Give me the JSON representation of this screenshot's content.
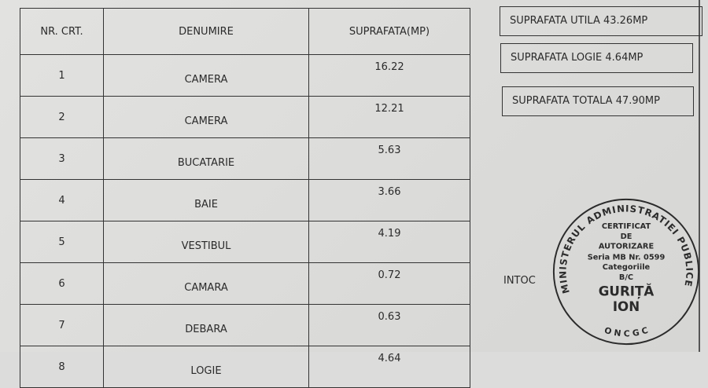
{
  "table": {
    "headers": [
      "NR. CRT.",
      "DENUMIRE",
      "SUPRAFATA(MP)"
    ],
    "rows": [
      {
        "nr": "1",
        "name": "CAMERA",
        "area": "16.22"
      },
      {
        "nr": "2",
        "name": "CAMERA",
        "area": "12.21"
      },
      {
        "nr": "3",
        "name": "BUCATARIE",
        "area": "5.63"
      },
      {
        "nr": "4",
        "name": "BAIE",
        "area": "3.66"
      },
      {
        "nr": "5",
        "name": "VESTIBUL",
        "area": "4.19"
      },
      {
        "nr": "6",
        "name": "CAMARA",
        "area": "0.72"
      },
      {
        "nr": "7",
        "name": "DEBARA",
        "area": "0.63"
      },
      {
        "nr": "8",
        "name": "LOGIE",
        "area": "4.64"
      }
    ]
  },
  "summary": {
    "utila": "SUPRAFATA UTILA 43.26MP",
    "logie": "SUPRAFATA LOGIE 4.64MP",
    "totala": "SUPRAFATA TOTALA  47.90MP"
  },
  "intocmit": "INTOC",
  "stamp": {
    "ring": "MINISTERUL ADMINISTRATIEI PUBLICE",
    "bottom": "O N C G C",
    "lines": [
      "CERTIFICAT",
      "DE",
      "AUTORIZARE",
      "Seria MB Nr. 0599",
      "Categoriile",
      "B/C",
      "GURIȚĂ",
      "ION"
    ]
  },
  "colors": {
    "paper": "#dcdcdb",
    "ink": "#2a2a2a"
  }
}
